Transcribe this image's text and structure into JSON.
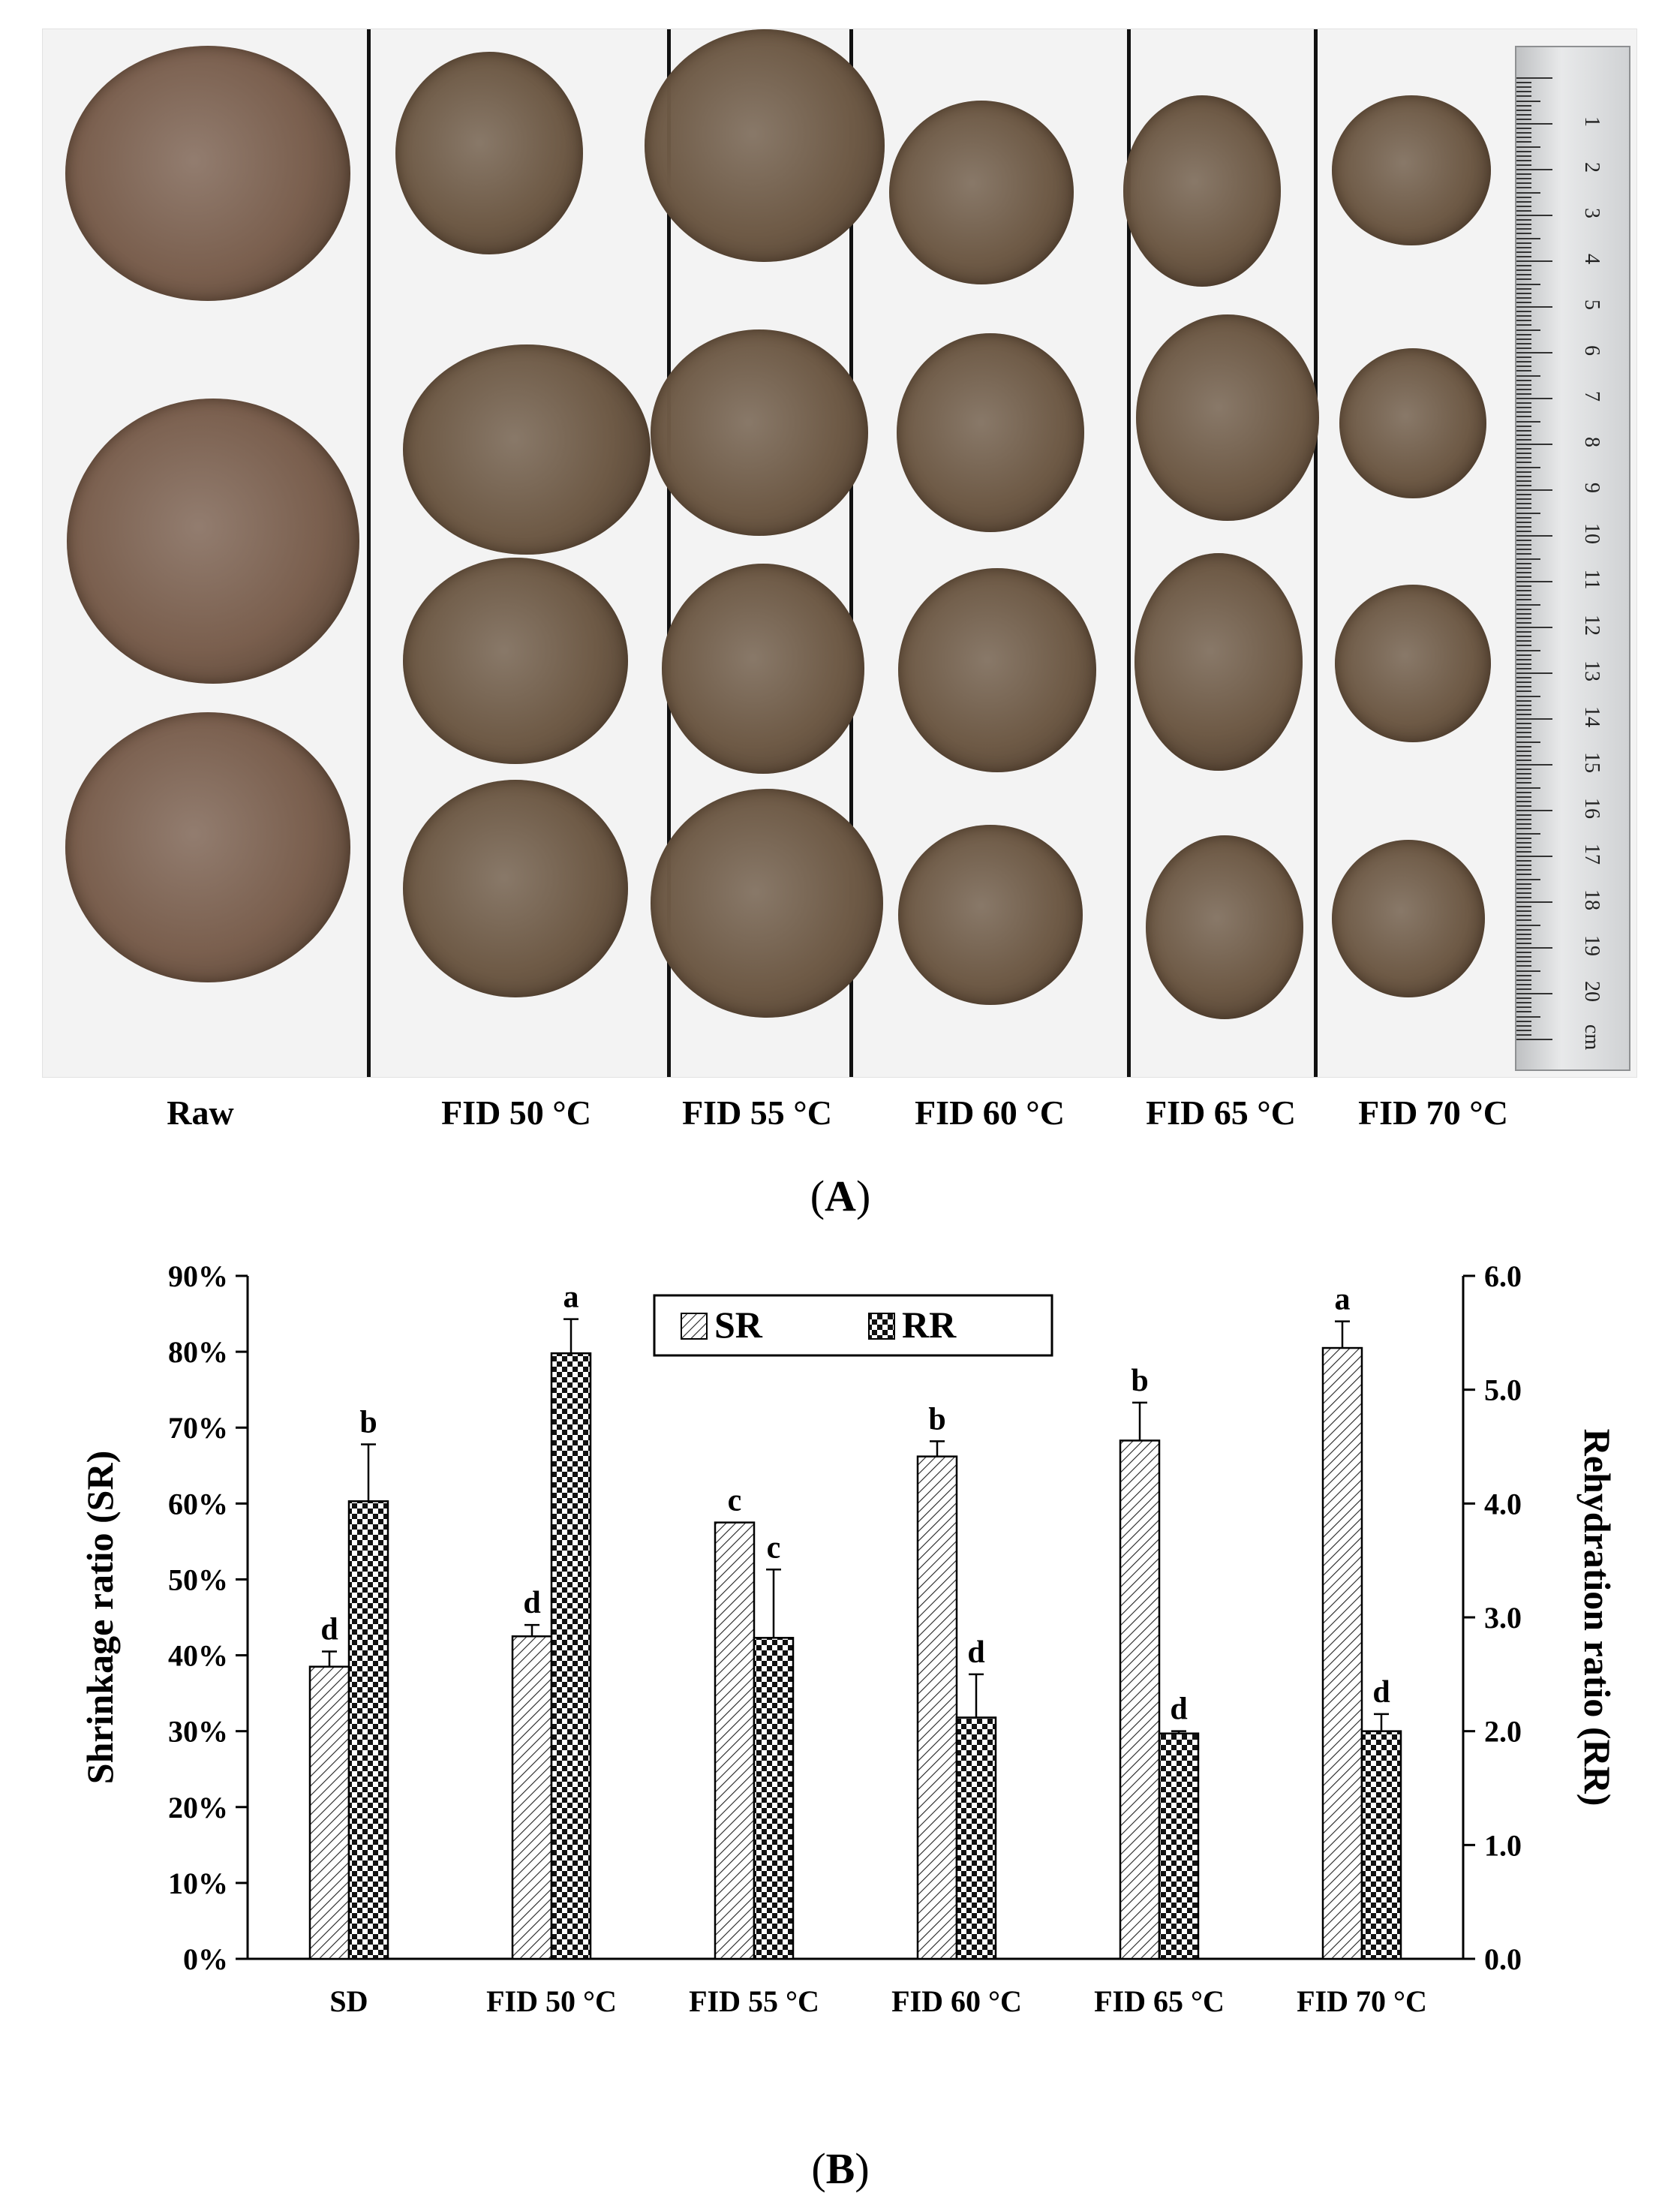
{
  "panel_a": {
    "caption_letter": "A",
    "labels": [
      "Raw",
      "FID 50 °C",
      "FID 55 °C",
      "FID 60 °C",
      "FID 65 °C",
      "FID 70 °C"
    ],
    "ruler_numbers": [
      "1",
      "2",
      "3",
      "4",
      "5",
      "6",
      "7",
      "8",
      "9",
      "10",
      "11",
      "12",
      "13",
      "14",
      "15",
      "16",
      "17",
      "18",
      "19",
      "20"
    ],
    "ruler_unit": "cm",
    "colors": {
      "raw_cap": "#7a5f4e",
      "dried_cap": "#6e5a46",
      "divider": "#111111"
    }
  },
  "panel_b": {
    "caption_letter": "B"
  },
  "chart_data": {
    "type": "bar",
    "categories": [
      "SD",
      "FID 50 °C",
      "FID 55 °C",
      "FID 60 °C",
      "FID 65 °C",
      "FID 70 °C"
    ],
    "series": [
      {
        "name": "SR",
        "axis": "left",
        "pattern": "diagonal-hatch",
        "values": [
          38.5,
          42.5,
          57.5,
          66.2,
          68.3,
          80.5
        ],
        "errors": [
          2.0,
          1.5,
          0.0,
          2.0,
          5.0,
          3.5
        ],
        "letters": [
          "d",
          "d",
          "c",
          "b",
          "b",
          "a"
        ]
      },
      {
        "name": "RR",
        "axis": "right",
        "pattern": "checkerboard",
        "values": [
          4.02,
          5.32,
          2.82,
          2.12,
          1.98,
          2.0
        ],
        "errors": [
          0.5,
          0.3,
          0.6,
          0.38,
          0.02,
          0.15
        ],
        "letters": [
          "b",
          "a",
          "c",
          "d",
          "d",
          "d"
        ]
      }
    ],
    "ylabel_left": "Shrinkage ratio (SR)",
    "ylabel_right": "Rehydration ratio (RR)",
    "ylim_left": [
      0,
      90
    ],
    "ylim_right": [
      0,
      6
    ],
    "yticks_left": [
      "0%",
      "10%",
      "20%",
      "30%",
      "40%",
      "50%",
      "60%",
      "70%",
      "80%",
      "90%"
    ],
    "yticks_right": [
      "0.0",
      "1.0",
      "2.0",
      "3.0",
      "4.0",
      "5.0",
      "6.0"
    ],
    "legend_position": "top-center",
    "grid": false
  }
}
